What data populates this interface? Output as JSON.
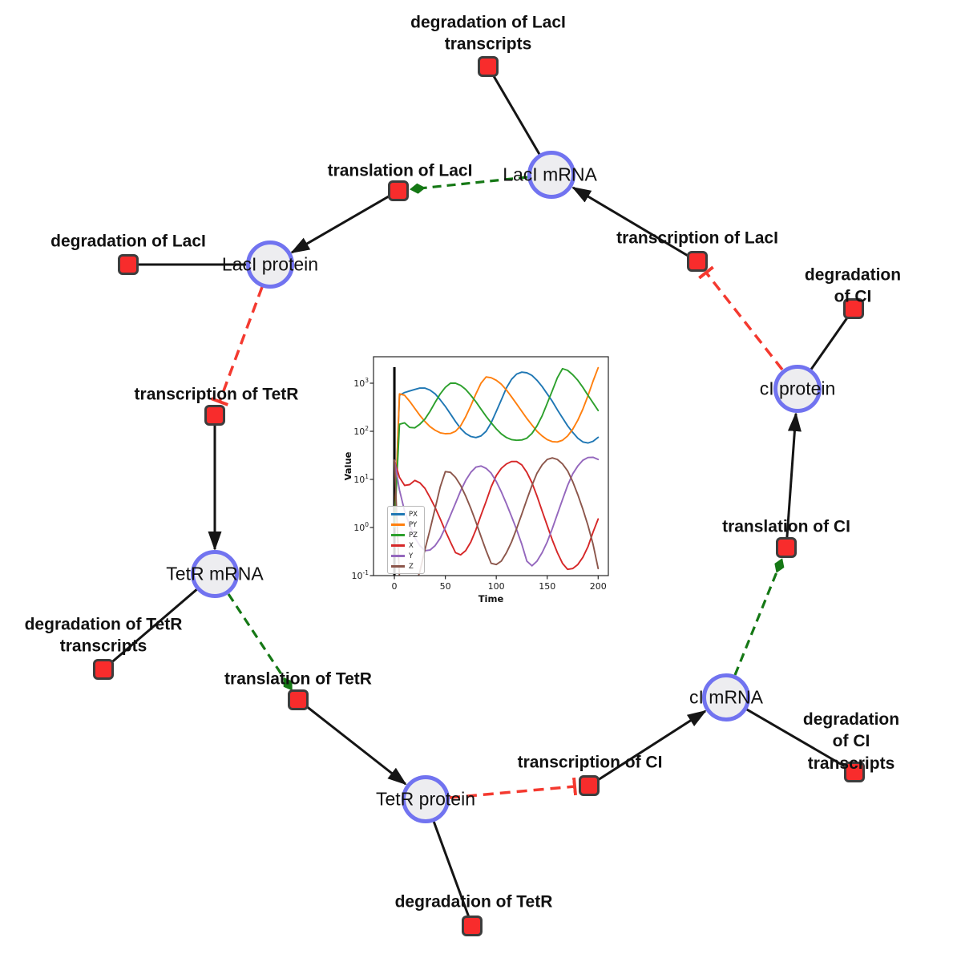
{
  "diagram": {
    "species": [
      {
        "id": "laci-mrna",
        "label": "LacI mRNA"
      },
      {
        "id": "laci-protein",
        "label": "LacI protein"
      },
      {
        "id": "tetr-mrna",
        "label": "TetR mRNA"
      },
      {
        "id": "tetr-protein",
        "label": "TetR protein"
      },
      {
        "id": "ci-mrna",
        "label": "cI mRNA"
      },
      {
        "id": "ci-protein",
        "label": "cI protein"
      }
    ],
    "reactions": [
      {
        "id": "degradation-laci-transcripts",
        "label": "degradation of LacI\ntranscripts"
      },
      {
        "id": "translation-laci",
        "label": "translation of LacI"
      },
      {
        "id": "transcription-laci",
        "label": "transcription of LacI"
      },
      {
        "id": "degradation-laci",
        "label": "degradation of LacI"
      },
      {
        "id": "transcription-tetr",
        "label": "transcription of TetR"
      },
      {
        "id": "degradation-tetr-transcripts",
        "label": "degradation of TetR\ntranscripts"
      },
      {
        "id": "translation-tetr",
        "label": "translation of TetR"
      },
      {
        "id": "degradation-tetr",
        "label": "degradation of TetR"
      },
      {
        "id": "transcription-ci",
        "label": "transcription of CI"
      },
      {
        "id": "degradation-ci-transcripts",
        "label": "degradation of CI\ntranscripts"
      },
      {
        "id": "translation-ci",
        "label": "translation of CI"
      },
      {
        "id": "degradation-ci",
        "label": "degradation of CI"
      }
    ],
    "edges": [
      {
        "from": "laci-mrna",
        "to": "degradation-laci-transcripts",
        "type": "consumption"
      },
      {
        "from": "laci-mrna",
        "to": "translation-laci",
        "type": "catalysis"
      },
      {
        "from": "translation-laci",
        "to": "laci-protein",
        "type": "production"
      },
      {
        "from": "laci-protein",
        "to": "degradation-laci",
        "type": "consumption"
      },
      {
        "from": "laci-protein",
        "to": "transcription-tetr",
        "type": "inhibition"
      },
      {
        "from": "transcription-tetr",
        "to": "tetr-mrna",
        "type": "production"
      },
      {
        "from": "tetr-mrna",
        "to": "degradation-tetr-transcripts",
        "type": "consumption"
      },
      {
        "from": "tetr-mrna",
        "to": "translation-tetr",
        "type": "catalysis"
      },
      {
        "from": "translation-tetr",
        "to": "tetr-protein",
        "type": "production"
      },
      {
        "from": "tetr-protein",
        "to": "degradation-tetr",
        "type": "consumption"
      },
      {
        "from": "tetr-protein",
        "to": "transcription-ci",
        "type": "inhibition"
      },
      {
        "from": "transcription-ci",
        "to": "ci-mrna",
        "type": "production"
      },
      {
        "from": "ci-mrna",
        "to": "degradation-ci-transcripts",
        "type": "consumption"
      },
      {
        "from": "ci-mrna",
        "to": "translation-ci",
        "type": "catalysis"
      },
      {
        "from": "translation-ci",
        "to": "ci-protein",
        "type": "production"
      },
      {
        "from": "ci-protein",
        "to": "degradation-ci",
        "type": "consumption"
      },
      {
        "from": "ci-protein",
        "to": "transcription-laci",
        "type": "inhibition"
      }
    ],
    "colors": {
      "species_fill": "#ededf0",
      "species_border": "#7173f0",
      "reaction_fill": "#f82c2c",
      "reaction_border": "#3d3d3d",
      "edge_black": "#151515",
      "catalysis_green": "#157815",
      "inhibition_red": "#f4392f"
    }
  },
  "chart_data": {
    "type": "line",
    "title": "",
    "xlabel": "Time",
    "ylabel": "Value",
    "x_axis_range": [
      -20.5,
      210
    ],
    "xticks": [
      0,
      50,
      100,
      150,
      200
    ],
    "y_scale": "log",
    "ylim": [
      0.1,
      3500
    ],
    "ytick_exponents": [
      -1,
      0,
      1,
      2,
      3
    ],
    "event_line_x": 0,
    "legend_position": "lower left",
    "grid": false,
    "x": [
      0,
      5,
      10,
      15,
      20,
      25,
      30,
      35,
      40,
      45,
      50,
      55,
      60,
      65,
      70,
      75,
      80,
      85,
      90,
      95,
      100,
      105,
      110,
      115,
      120,
      125,
      130,
      135,
      140,
      145,
      150,
      155,
      160,
      165,
      170,
      175,
      180,
      185,
      190,
      195,
      200
    ],
    "series": [
      {
        "name": "PX",
        "color": "#1f77b4",
        "values": [
          1,
          560,
          640,
          690,
          740,
          790,
          790,
          720,
          600,
          450,
          330,
          230,
          160,
          115,
          90,
          78,
          74,
          80,
          100,
          150,
          260,
          450,
          800,
          1200,
          1550,
          1700,
          1650,
          1450,
          1150,
          850,
          600,
          420,
          280,
          190,
          130,
          95,
          72,
          60,
          57,
          62,
          75
        ]
      },
      {
        "name": "PY",
        "color": "#ff7f0e",
        "values": [
          1,
          600,
          560,
          420,
          300,
          215,
          160,
          125,
          105,
          93,
          89,
          90,
          100,
          130,
          200,
          340,
          600,
          1000,
          1350,
          1300,
          1150,
          950,
          720,
          520,
          370,
          260,
          185,
          135,
          100,
          80,
          67,
          61,
          60,
          65,
          80,
          110,
          170,
          290,
          550,
          1100,
          2100
        ]
      },
      {
        "name": "PZ",
        "color": "#2ca02c",
        "values": [
          1,
          140,
          150,
          120,
          118,
          140,
          180,
          260,
          400,
          600,
          820,
          1000,
          1000,
          900,
          740,
          560,
          410,
          290,
          205,
          150,
          112,
          88,
          74,
          67,
          65,
          66,
          72,
          90,
          130,
          210,
          380,
          700,
          1300,
          2000,
          1850,
          1500,
          1150,
          820,
          560,
          390,
          270
        ]
      },
      {
        "name": "X",
        "color": "#d62728",
        "values": [
          25,
          11,
          7.5,
          7.8,
          9.5,
          8.5,
          6.5,
          4.2,
          2.6,
          1.5,
          0.85,
          0.5,
          0.3,
          0.27,
          0.33,
          0.5,
          0.9,
          1.8,
          3.5,
          7,
          12,
          17,
          21,
          23.5,
          23.5,
          20,
          14,
          8.5,
          4.5,
          2.2,
          1.1,
          0.55,
          0.3,
          0.18,
          0.135,
          0.14,
          0.17,
          0.24,
          0.4,
          0.8,
          1.5
        ]
      },
      {
        "name": "Y",
        "color": "#9467bd",
        "values": [
          25,
          6,
          2.2,
          1.1,
          0.62,
          0.42,
          0.33,
          0.34,
          0.42,
          0.6,
          1.0,
          1.8,
          3.2,
          5.8,
          9.5,
          14,
          18,
          19,
          17,
          13.5,
          9,
          5.5,
          3.1,
          1.7,
          0.9,
          0.45,
          0.2,
          0.16,
          0.2,
          0.3,
          0.5,
          0.95,
          1.9,
          3.8,
          7.5,
          13,
          19,
          25,
          28.5,
          28.8,
          26
        ]
      },
      {
        "name": "Z",
        "color": "#8c564b",
        "values": [
          25,
          0.09,
          0.04,
          0.04,
          0.06,
          0.12,
          0.35,
          0.9,
          2.5,
          7,
          14.5,
          14,
          11,
          7.5,
          4.5,
          2.5,
          1.3,
          0.65,
          0.33,
          0.18,
          0.17,
          0.2,
          0.3,
          0.5,
          0.95,
          1.9,
          3.8,
          7.5,
          13.5,
          20,
          26,
          28,
          26,
          21,
          15,
          9,
          4.8,
          2.4,
          1.1,
          0.45,
          0.14
        ]
      }
    ]
  }
}
